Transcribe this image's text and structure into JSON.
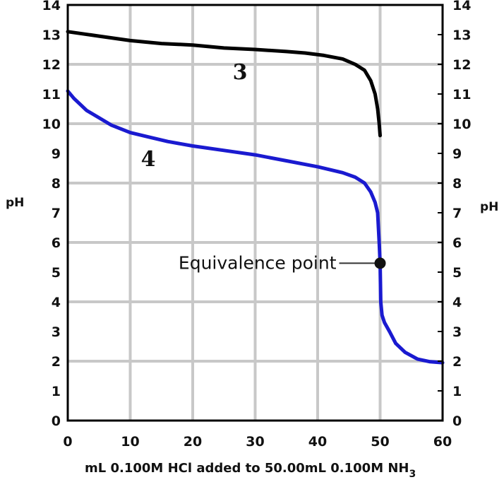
{
  "chart_data": {
    "type": "line",
    "title": "",
    "xlabel": "mL 0.100M HCl added to 50.00mL 0.100M NH",
    "xlabel_subscript": "3",
    "ylabel": "pH",
    "ylabel_right": "pH",
    "xlim": [
      0,
      60
    ],
    "ylim": [
      0,
      14
    ],
    "x_ticks": [
      "0",
      "10",
      "20",
      "30",
      "40",
      "50",
      "60"
    ],
    "y_ticks": [
      "0",
      "1",
      "2",
      "3",
      "4",
      "5",
      "6",
      "7",
      "8",
      "9",
      "10",
      "11",
      "12",
      "13",
      "14"
    ],
    "grid": true,
    "series": [
      {
        "name": "3",
        "color": "#000000",
        "x": [
          0,
          5,
          10,
          15,
          20,
          25,
          30,
          35,
          38,
          41,
          44,
          46,
          47.5,
          48.5,
          49.2,
          49.6,
          49.85,
          50
        ],
        "y": [
          13.1,
          12.95,
          12.8,
          12.7,
          12.65,
          12.55,
          12.5,
          12.43,
          12.38,
          12.3,
          12.18,
          12.0,
          11.8,
          11.45,
          11.0,
          10.5,
          10.0,
          9.6
        ]
      },
      {
        "name": "4",
        "color": "#1a1ad0",
        "x": [
          0,
          1,
          2,
          3,
          5,
          7,
          10,
          13,
          16,
          20,
          25,
          30,
          35,
          40,
          44,
          46,
          47.5,
          48.5,
          49.2,
          49.6,
          49.85,
          50,
          50.1,
          50.3,
          50.7,
          51.5,
          52.5,
          54,
          56,
          58,
          60
        ],
        "y": [
          11.1,
          10.85,
          10.65,
          10.45,
          10.2,
          9.95,
          9.7,
          9.55,
          9.4,
          9.25,
          9.1,
          8.95,
          8.75,
          8.55,
          8.35,
          8.2,
          8.0,
          7.7,
          7.35,
          7.0,
          6.0,
          5.3,
          4.0,
          3.55,
          3.3,
          3.0,
          2.6,
          2.3,
          2.07,
          1.98,
          1.95
        ]
      }
    ],
    "annotations": [
      {
        "text": "Equivalence point",
        "x": 50,
        "y": 5.3
      }
    ]
  }
}
